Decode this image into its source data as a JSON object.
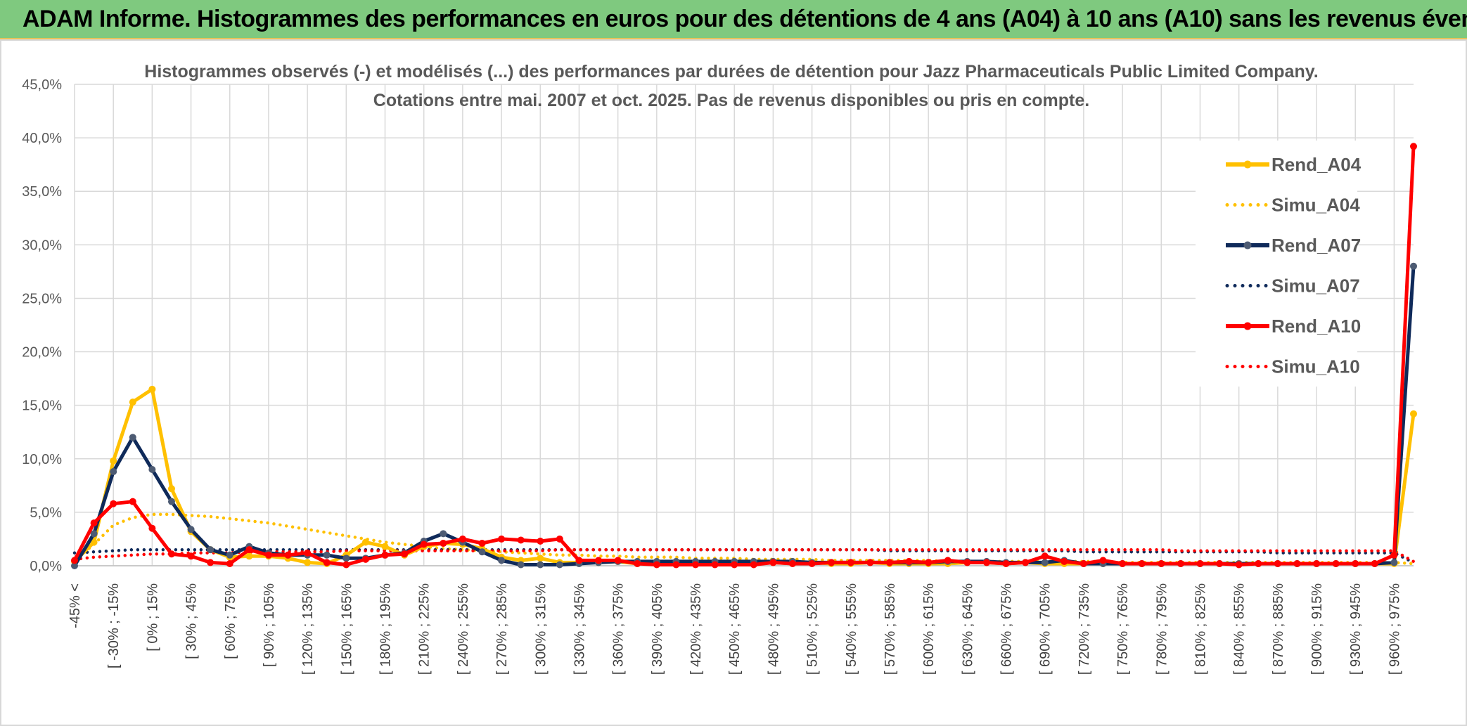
{
  "banner": {
    "title": "ADAM Informe. Histogrammes des performances en euros pour des détentions de 4 ans (A04) à 10 ans (A10) sans les revenus éventuels"
  },
  "chart_data": {
    "type": "line",
    "title_line1": "Histogrammes observés (-) et modélisés (...) des performances par durées de détention pour Jazz Pharmaceuticals Public Limited Company.",
    "title_line2": "Cotations entre mai. 2007 et oct. 2025. Pas de revenus disponibles ou pris en compte.",
    "ylim": [
      0,
      45
    ],
    "y_ticks": [
      "0,0%",
      "5,0%",
      "10,0%",
      "15,0%",
      "20,0%",
      "25,0%",
      "30,0%",
      "35,0%",
      "40,0%",
      "45,0%"
    ],
    "y_tick_values": [
      0,
      5,
      10,
      15,
      20,
      25,
      30,
      35,
      40,
      45
    ],
    "grid": true,
    "legend_position": "top-right",
    "n_points": 70,
    "x_labels": [
      {
        "index": 0,
        "label": "-45% <"
      },
      {
        "index": 2,
        "label": "[ -30% ; -15%"
      },
      {
        "index": 4,
        "label": "[ 0% ; 15%"
      },
      {
        "index": 6,
        "label": "[ 30% ; 45%"
      },
      {
        "index": 8,
        "label": "[ 60% ; 75%"
      },
      {
        "index": 10,
        "label": "[ 90% ; 105%"
      },
      {
        "index": 12,
        "label": "[ 120% ; 135%"
      },
      {
        "index": 14,
        "label": "[ 150% ; 165%"
      },
      {
        "index": 16,
        "label": "[ 180% ; 195%"
      },
      {
        "index": 18,
        "label": "[ 210% ; 225%"
      },
      {
        "index": 20,
        "label": "[ 240% ; 255%"
      },
      {
        "index": 22,
        "label": "[ 270% ; 285%"
      },
      {
        "index": 24,
        "label": "[ 300% ; 315%"
      },
      {
        "index": 26,
        "label": "[ 330% ; 345%"
      },
      {
        "index": 28,
        "label": "[ 360% ; 375%"
      },
      {
        "index": 30,
        "label": "[ 390% ; 405%"
      },
      {
        "index": 32,
        "label": "[ 420% ; 435%"
      },
      {
        "index": 34,
        "label": "[ 450% ; 465%"
      },
      {
        "index": 36,
        "label": "[ 480% ; 495%"
      },
      {
        "index": 38,
        "label": "[ 510% ; 525%"
      },
      {
        "index": 40,
        "label": "[ 540% ; 555%"
      },
      {
        "index": 42,
        "label": "[ 570% ; 585%"
      },
      {
        "index": 44,
        "label": "[ 600% ; 615%"
      },
      {
        "index": 46,
        "label": "[ 630% ; 645%"
      },
      {
        "index": 48,
        "label": "[ 660% ; 675%"
      },
      {
        "index": 50,
        "label": "[ 690% ; 705%"
      },
      {
        "index": 52,
        "label": "[ 720% ; 735%"
      },
      {
        "index": 54,
        "label": "[ 750% ; 765%"
      },
      {
        "index": 56,
        "label": "[ 780% ; 795%"
      },
      {
        "index": 58,
        "label": "[ 810% ; 825%"
      },
      {
        "index": 60,
        "label": "[ 840% ; 855%"
      },
      {
        "index": 62,
        "label": "[ 870% ; 885%"
      },
      {
        "index": 64,
        "label": "[ 900% ; 915%"
      },
      {
        "index": 66,
        "label": "[ 930% ; 945%"
      },
      {
        "index": 68,
        "label": "[ 960% ; 975%"
      }
    ],
    "series": [
      {
        "name": "Rend_A04",
        "color": "#ffc000",
        "style": "solid",
        "markers": true,
        "values": [
          0.4,
          2.2,
          9.8,
          15.3,
          16.5,
          7.2,
          3.2,
          1.5,
          0.8,
          0.9,
          0.9,
          0.7,
          0.3,
          0.2,
          1.0,
          2.2,
          1.8,
          1.0,
          1.8,
          2.1,
          2.0,
          1.6,
          0.8,
          0.5,
          0.7,
          0.3,
          0.3,
          0.3,
          0.4,
          0.2,
          0.2,
          0.3,
          0.2,
          0.2,
          0.2,
          0.2,
          0.3,
          0.2,
          0.3,
          0.2,
          0.2,
          0.3,
          0.2,
          0.2,
          0.2,
          0.2,
          0.3,
          0.3,
          0.2,
          0.3,
          0.2,
          0.2,
          0.2,
          0.2,
          0.2,
          0.2,
          0.2,
          0.2,
          0.2,
          0.2,
          0.2,
          0.2,
          0.2,
          0.2,
          0.2,
          0.2,
          0.2,
          0.2,
          0.2,
          14.2
        ]
      },
      {
        "name": "Simu_A04",
        "color": "#ffc000",
        "style": "dotted",
        "markers": false,
        "values": [
          0.5,
          2.0,
          3.8,
          4.5,
          4.8,
          4.8,
          4.7,
          4.6,
          4.4,
          4.2,
          4.0,
          3.7,
          3.4,
          3.1,
          2.8,
          2.5,
          2.2,
          2.0,
          1.8,
          1.6,
          1.5,
          1.4,
          1.3,
          1.2,
          1.1,
          1.0,
          1.0,
          0.9,
          0.9,
          0.8,
          0.8,
          0.8,
          0.7,
          0.7,
          0.7,
          0.6,
          0.6,
          0.6,
          0.6,
          0.5,
          0.5,
          0.5,
          0.5,
          0.5,
          0.5,
          0.4,
          0.4,
          0.4,
          0.4,
          0.4,
          0.4,
          0.4,
          0.4,
          0.4,
          0.3,
          0.3,
          0.3,
          0.3,
          0.3,
          0.3,
          0.3,
          0.3,
          0.3,
          0.3,
          0.3,
          0.3,
          0.3,
          0.3,
          0.3,
          0.2
        ]
      },
      {
        "name": "Rend_A07",
        "color": "#0f2a5a",
        "style": "solid",
        "markers": true,
        "values": [
          0.0,
          3.0,
          8.8,
          12.0,
          9.0,
          6.0,
          3.4,
          1.5,
          1.0,
          1.8,
          1.2,
          1.0,
          1.0,
          1.0,
          0.7,
          0.7,
          1.0,
          1.2,
          2.3,
          3.0,
          2.2,
          1.3,
          0.5,
          0.1,
          0.1,
          0.1,
          0.2,
          0.3,
          0.4,
          0.4,
          0.4,
          0.4,
          0.4,
          0.4,
          0.4,
          0.4,
          0.4,
          0.4,
          0.3,
          0.3,
          0.3,
          0.3,
          0.3,
          0.3,
          0.3,
          0.4,
          0.4,
          0.4,
          0.3,
          0.3,
          0.3,
          0.5,
          0.2,
          0.2,
          0.2,
          0.2,
          0.2,
          0.2,
          0.2,
          0.2,
          0.2,
          0.2,
          0.2,
          0.2,
          0.2,
          0.2,
          0.2,
          0.2,
          0.3,
          28.0
        ]
      },
      {
        "name": "Simu_A07",
        "color": "#0f2a5a",
        "style": "dotted",
        "markers": false,
        "values": [
          1.2,
          1.3,
          1.4,
          1.5,
          1.5,
          1.5,
          1.5,
          1.5,
          1.5,
          1.5,
          1.5,
          1.5,
          1.5,
          1.5,
          1.5,
          1.5,
          1.5,
          1.5,
          1.5,
          1.5,
          1.5,
          1.5,
          1.5,
          1.5,
          1.5,
          1.5,
          1.5,
          1.5,
          1.5,
          1.5,
          1.5,
          1.5,
          1.5,
          1.5,
          1.5,
          1.5,
          1.5,
          1.5,
          1.5,
          1.5,
          1.5,
          1.5,
          1.4,
          1.4,
          1.4,
          1.4,
          1.4,
          1.4,
          1.4,
          1.4,
          1.4,
          1.4,
          1.3,
          1.3,
          1.3,
          1.3,
          1.3,
          1.3,
          1.3,
          1.3,
          1.3,
          1.3,
          1.2,
          1.2,
          1.2,
          1.2,
          1.2,
          1.2,
          1.2,
          0.3
        ]
      },
      {
        "name": "Rend_A10",
        "color": "#ff0000",
        "style": "solid",
        "markers": true,
        "values": [
          0.5,
          4.0,
          5.8,
          6.0,
          3.5,
          1.1,
          0.9,
          0.3,
          0.2,
          1.5,
          1.0,
          1.0,
          1.2,
          0.3,
          0.1,
          0.6,
          1.0,
          1.1,
          2.0,
          2.1,
          2.5,
          2.1,
          2.5,
          2.4,
          2.3,
          2.5,
          0.5,
          0.5,
          0.5,
          0.2,
          0.1,
          0.1,
          0.1,
          0.1,
          0.1,
          0.1,
          0.3,
          0.2,
          0.2,
          0.3,
          0.3,
          0.3,
          0.3,
          0.4,
          0.3,
          0.5,
          0.3,
          0.3,
          0.2,
          0.3,
          0.9,
          0.4,
          0.2,
          0.5,
          0.2,
          0.2,
          0.2,
          0.2,
          0.2,
          0.2,
          0.1,
          0.2,
          0.2,
          0.2,
          0.2,
          0.2,
          0.2,
          0.2,
          1.0,
          39.2
        ]
      },
      {
        "name": "Simu_A10",
        "color": "#ff0000",
        "style": "dotted",
        "markers": false,
        "values": [
          0.6,
          0.8,
          0.9,
          1.0,
          1.1,
          1.1,
          1.2,
          1.2,
          1.2,
          1.3,
          1.3,
          1.3,
          1.3,
          1.3,
          1.4,
          1.4,
          1.4,
          1.4,
          1.4,
          1.4,
          1.4,
          1.4,
          1.4,
          1.4,
          1.4,
          1.5,
          1.5,
          1.5,
          1.5,
          1.5,
          1.5,
          1.5,
          1.5,
          1.5,
          1.5,
          1.5,
          1.5,
          1.5,
          1.5,
          1.5,
          1.5,
          1.5,
          1.5,
          1.5,
          1.5,
          1.5,
          1.5,
          1.5,
          1.5,
          1.5,
          1.5,
          1.5,
          1.5,
          1.5,
          1.5,
          1.5,
          1.5,
          1.4,
          1.4,
          1.4,
          1.4,
          1.4,
          1.4,
          1.4,
          1.4,
          1.4,
          1.4,
          1.4,
          1.4,
          0.4
        ]
      }
    ]
  }
}
